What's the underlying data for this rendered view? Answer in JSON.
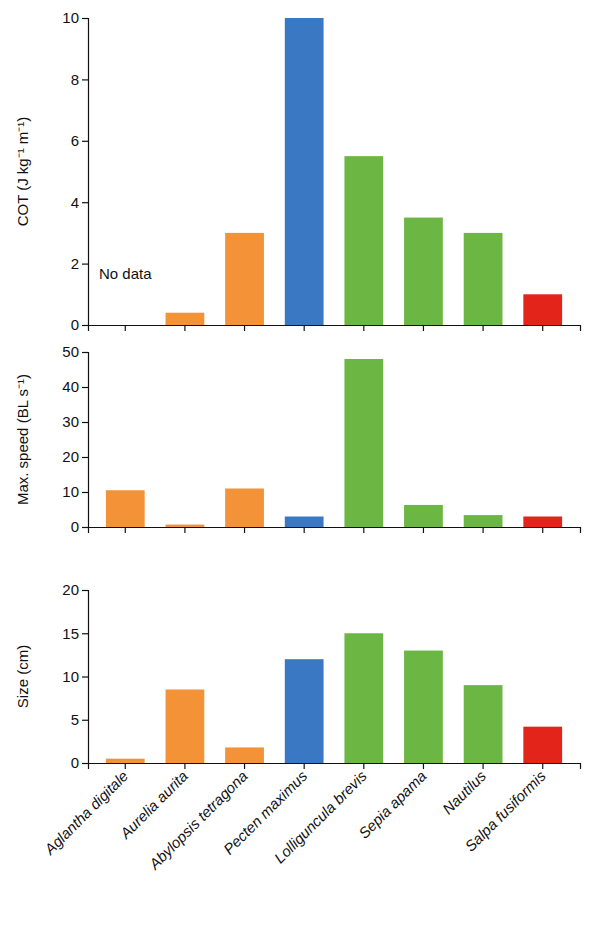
{
  "chart_data": [
    {
      "type": "bar",
      "y_label": "COT (J kg⁻¹ m⁻¹)",
      "categories": [
        "Aglantha digitale",
        "Aurelia aurita",
        "Abylopsis tetragona",
        "Pecten maximus",
        "Lolliguncula brevis",
        "Sepia apama",
        "Nautilus",
        "Salpa fusiformis"
      ],
      "values": [
        null,
        0.4,
        3.0,
        10.0,
        5.5,
        3.5,
        3.0,
        1.0
      ],
      "colors": [
        "#f39237",
        "#f39237",
        "#f39237",
        "#3b78c3",
        "#6cb644",
        "#6cb644",
        "#6cb644",
        "#e3241b"
      ],
      "annotation": "No data",
      "ylim": [
        0,
        10
      ],
      "yticks": [
        0,
        2,
        4,
        6,
        8,
        10
      ],
      "tick_labels": "y"
    },
    {
      "type": "bar",
      "y_label": "Max. speed (BL s⁻¹)",
      "categories": [
        "Aglantha digitale",
        "Aurelia aurita",
        "Abylopsis tetragona",
        "Pecten maximus",
        "Lolliguncula brevis",
        "Sepia apama",
        "Nautilus",
        "Salpa fusiformis"
      ],
      "values": [
        10.5,
        0.7,
        11.0,
        3.0,
        48.0,
        6.3,
        3.4,
        3.0
      ],
      "colors": [
        "#f39237",
        "#f39237",
        "#f39237",
        "#3b78c3",
        "#6cb644",
        "#6cb644",
        "#6cb644",
        "#e3241b"
      ],
      "ylim": [
        0,
        50
      ],
      "yticks": [
        0,
        10,
        20,
        30,
        40,
        50
      ],
      "tick_labels": "y"
    },
    {
      "type": "bar",
      "y_label": "Size (cm)",
      "categories": [
        "Aglantha digitale",
        "Aurelia aurita",
        "Abylopsis tetragona",
        "Pecten maximus",
        "Lolliguncula brevis",
        "Sepia apama",
        "Nautilus",
        "Salpa fusiformis"
      ],
      "values": [
        0.5,
        8.5,
        1.8,
        12.0,
        15.0,
        13.0,
        9.0,
        4.2
      ],
      "colors": [
        "#f39237",
        "#f39237",
        "#f39237",
        "#3b78c3",
        "#6cb644",
        "#6cb644",
        "#6cb644",
        "#e3241b"
      ],
      "ylim": [
        0,
        20
      ],
      "yticks": [
        0,
        5,
        10,
        15,
        20
      ]
    }
  ]
}
